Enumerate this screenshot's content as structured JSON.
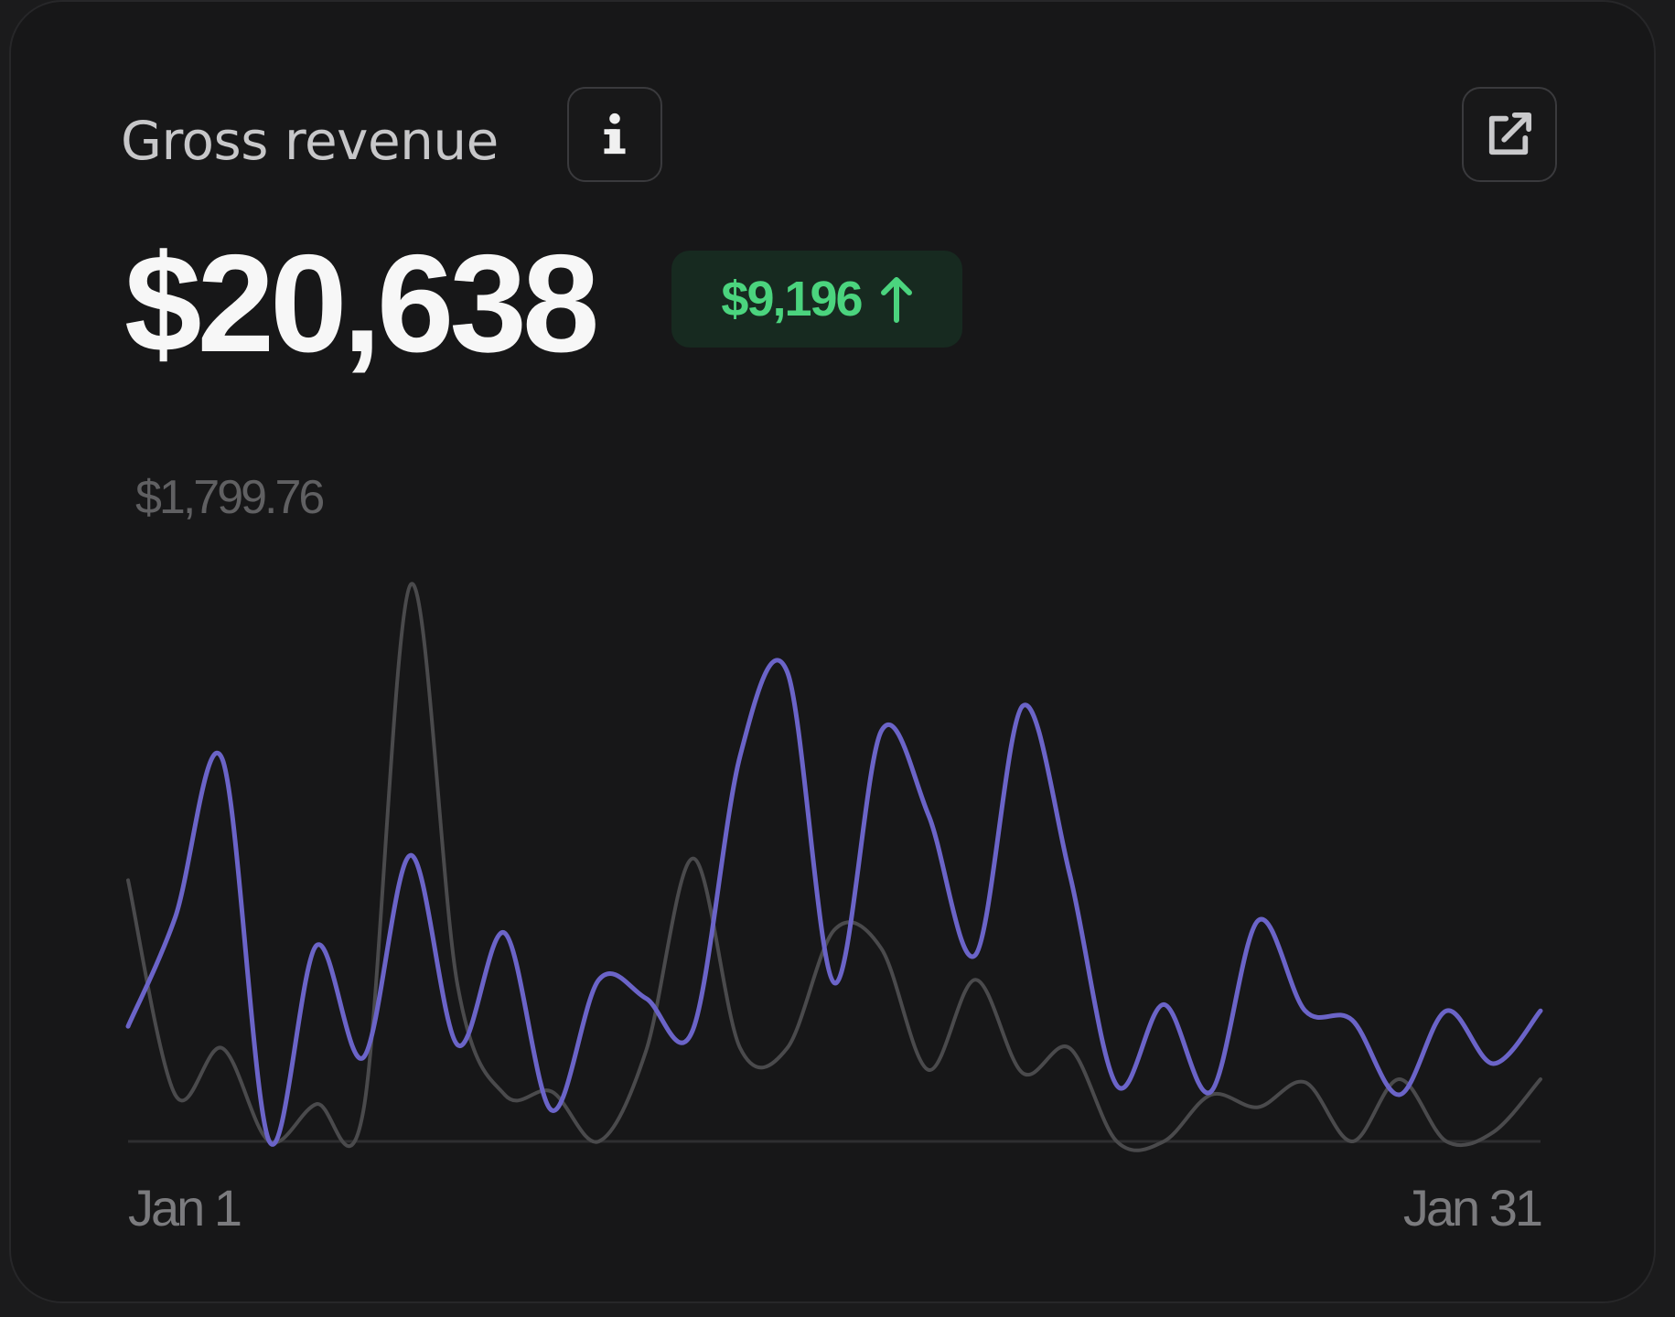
{
  "card": {
    "title": "Gross revenue",
    "info_icon": "info-icon",
    "external_icon": "external-link-icon",
    "value": "$20,638",
    "change": "$9,196",
    "change_icon": "arrow-up-icon",
    "max_label": "$1,799.76"
  },
  "colors": {
    "current": "#6b64c8",
    "previous": "#4a4a4c",
    "positive": "#4bd47e",
    "baseline": "#2e2e30"
  },
  "chart_data": {
    "type": "line",
    "x": [
      1,
      2,
      3,
      4,
      5,
      6,
      7,
      8,
      9,
      10,
      11,
      12,
      13,
      14,
      15,
      16,
      17,
      18,
      19,
      20,
      21,
      22,
      23,
      24,
      25,
      26,
      27,
      28,
      29,
      30,
      31
    ],
    "x_tick_labels": [
      "Jan 1",
      "Jan 31"
    ],
    "ylim": [
      0,
      1799.76
    ],
    "series": [
      {
        "role": "current",
        "values": [
          370,
          720,
          1230,
          0,
          630,
          270,
          920,
          310,
          670,
          100,
          520,
          460,
          360,
          1240,
          1510,
          510,
          1320,
          1050,
          600,
          1400,
          860,
          180,
          440,
          160,
          710,
          420,
          390,
          150,
          420,
          250,
          420
        ]
      },
      {
        "role": "previous",
        "values": [
          840,
          150,
          300,
          0,
          120,
          100,
          1790,
          500,
          150,
          160,
          0,
          290,
          910,
          300,
          300,
          680,
          620,
          230,
          520,
          220,
          300,
          0,
          0,
          150,
          110,
          190,
          0,
          200,
          0,
          30,
          200
        ]
      }
    ]
  }
}
